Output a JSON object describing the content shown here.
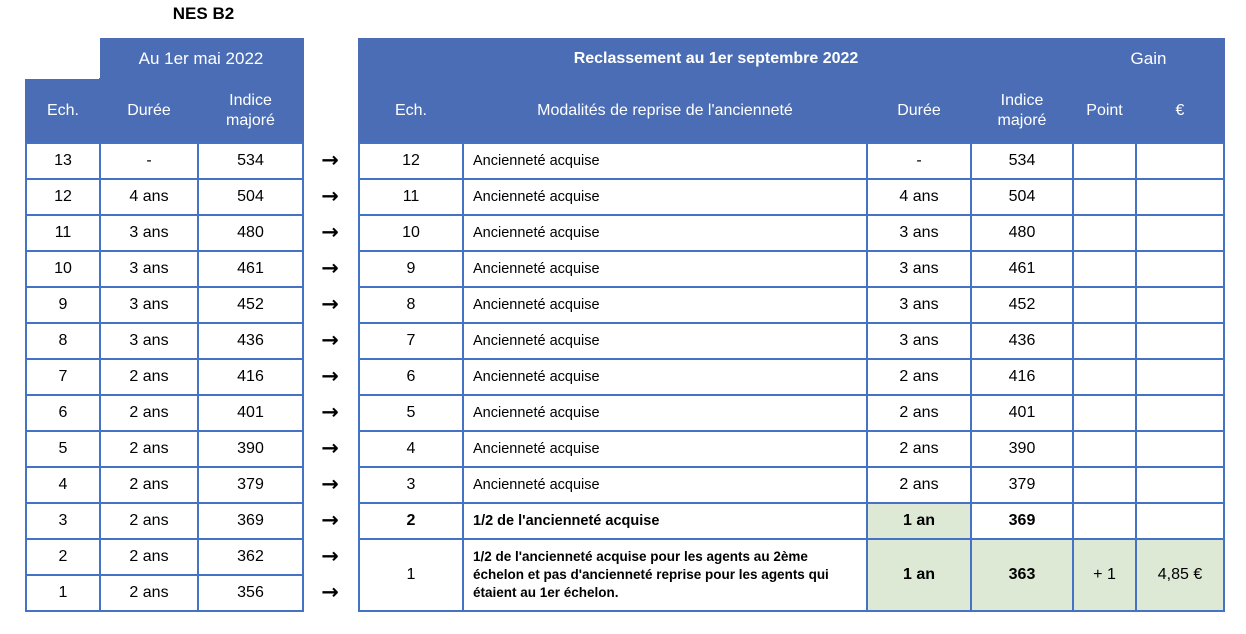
{
  "title": "NES B2",
  "colors": {
    "header_bg": "#4a6db5",
    "border": "#4472c4",
    "highlight_green": "#dde8d5",
    "header_text": "#ffffff",
    "body_text": "#000000"
  },
  "arrows": {
    "glyph": "→",
    "count": 13
  },
  "left_table": {
    "group_header": "Au 1er mai 2022",
    "columns": [
      "Ech.",
      "Durée",
      "Indice majoré"
    ],
    "rows": [
      {
        "ech": "13",
        "duree": "-",
        "indice": "534"
      },
      {
        "ech": "12",
        "duree": "4 ans",
        "indice": "504"
      },
      {
        "ech": "11",
        "duree": "3 ans",
        "indice": "480"
      },
      {
        "ech": "10",
        "duree": "3 ans",
        "indice": "461"
      },
      {
        "ech": "9",
        "duree": "3 ans",
        "indice": "452"
      },
      {
        "ech": "8",
        "duree": "3 ans",
        "indice": "436"
      },
      {
        "ech": "7",
        "duree": "2 ans",
        "indice": "416"
      },
      {
        "ech": "6",
        "duree": "2 ans",
        "indice": "401"
      },
      {
        "ech": "5",
        "duree": "2 ans",
        "indice": "390"
      },
      {
        "ech": "4",
        "duree": "2 ans",
        "indice": "379"
      },
      {
        "ech": "3",
        "duree": "2 ans",
        "indice": "369"
      },
      {
        "ech": "2",
        "duree": "2 ans",
        "indice": "362"
      },
      {
        "ech": "1",
        "duree": "2 ans",
        "indice": "356"
      }
    ]
  },
  "right_table": {
    "group_header_main": "Reclassement au 1er septembre 2022",
    "group_header_gain": "Gain",
    "columns": [
      "Ech.",
      "Modalités de reprise de l'ancienneté",
      "Durée",
      "Indice majoré",
      "Point",
      "€"
    ],
    "rows": [
      {
        "ech": "12",
        "modalites": "Ancienneté acquise",
        "duree": "-",
        "indice": "534",
        "point": "",
        "euro": ""
      },
      {
        "ech": "11",
        "modalites": "Ancienneté acquise",
        "duree": "4 ans",
        "indice": "504",
        "point": "",
        "euro": ""
      },
      {
        "ech": "10",
        "modalites": "Ancienneté acquise",
        "duree": "3 ans",
        "indice": "480",
        "point": "",
        "euro": ""
      },
      {
        "ech": "9",
        "modalites": "Ancienneté acquise",
        "duree": "3 ans",
        "indice": "461",
        "point": "",
        "euro": ""
      },
      {
        "ech": "8",
        "modalites": "Ancienneté acquise",
        "duree": "3 ans",
        "indice": "452",
        "point": "",
        "euro": ""
      },
      {
        "ech": "7",
        "modalites": "Ancienneté acquise",
        "duree": "3 ans",
        "indice": "436",
        "point": "",
        "euro": ""
      },
      {
        "ech": "6",
        "modalites": "Ancienneté acquise",
        "duree": "2 ans",
        "indice": "416",
        "point": "",
        "euro": ""
      },
      {
        "ech": "5",
        "modalites": "Ancienneté acquise",
        "duree": "2 ans",
        "indice": "401",
        "point": "",
        "euro": ""
      },
      {
        "ech": "4",
        "modalites": "Ancienneté acquise",
        "duree": "2 ans",
        "indice": "390",
        "point": "",
        "euro": ""
      },
      {
        "ech": "3",
        "modalites": "Ancienneté acquise",
        "duree": "2 ans",
        "indice": "379",
        "point": "",
        "euro": ""
      },
      {
        "ech": "2",
        "modalites": "1/2 de l'ancienneté acquise",
        "duree": "1 an",
        "indice": "369",
        "point": "",
        "euro": "",
        "bold_cells": [
          "ech",
          "modalites",
          "duree",
          "indice"
        ],
        "highlight": [
          "duree"
        ]
      },
      {
        "ech": "1",
        "modalites": "1/2 de l'ancienneté acquise pour les agents au 2ème échelon et pas d'ancienneté reprise pour les agents qui étaient au 1er échelon.",
        "duree": "1 an",
        "indice": "363",
        "point": "+ 1",
        "euro": "4,85 €",
        "bold_cells": [
          "modalites",
          "duree",
          "indice"
        ],
        "highlight": [
          "duree",
          "indice",
          "point",
          "euro"
        ],
        "tall": true
      }
    ]
  }
}
